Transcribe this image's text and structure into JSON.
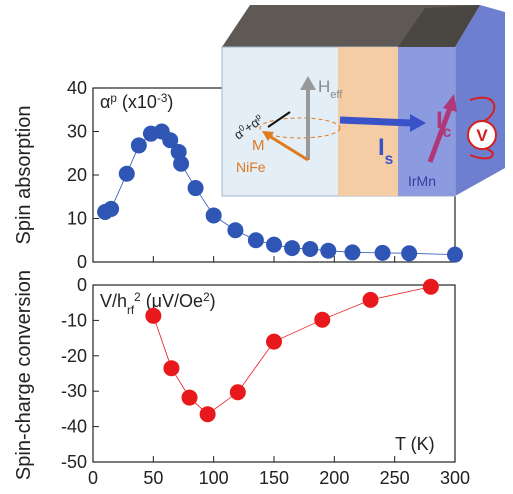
{
  "chart_data": [
    {
      "type": "scatter",
      "ylabel": "Spin absorption",
      "annotation": [
        {
          "text": "α"
        },
        {
          "text": "p",
          "style": "sup"
        },
        {
          "text": " (x10"
        },
        {
          "text": "-3",
          "style": "sup"
        },
        {
          "text": ")"
        }
      ],
      "x": [
        10,
        15,
        28,
        38,
        48,
        57,
        64,
        71,
        73,
        85,
        100,
        118,
        135,
        150,
        165,
        180,
        195,
        215,
        240,
        262,
        300
      ],
      "series": [
        {
          "color": "#2f55b5",
          "values": [
            11.5,
            12.2,
            20.3,
            26.8,
            29.5,
            30,
            28,
            25.3,
            22.6,
            17,
            10.7,
            7.3,
            5,
            4,
            3.2,
            3,
            2.6,
            2.2,
            2.1,
            2,
            1.7
          ]
        }
      ],
      "xlim": [
        0,
        300
      ],
      "xticks": [
        0,
        50,
        100,
        150,
        200,
        250,
        300
      ],
      "ylim": [
        0,
        40
      ],
      "yticks": [
        0,
        10,
        20,
        30,
        40
      ]
    },
    {
      "type": "scatter",
      "ylabel": "Spin-charge conversion",
      "xlabel": "T (K)",
      "annotation": [
        {
          "text": "V/h"
        },
        {
          "text": "rf",
          "style": "sub"
        },
        {
          "text": "2",
          "style": "sup"
        },
        {
          "text": " (μV/Oe"
        },
        {
          "text": "2",
          "style": "sup"
        },
        {
          "text": ")"
        }
      ],
      "x": [
        50,
        65,
        80,
        95,
        120,
        150,
        190,
        230,
        280
      ],
      "series": [
        {
          "color": "#e8191c",
          "values": [
            -8.7,
            -23.5,
            -31.8,
            -36.5,
            -30.3,
            -16,
            -9.8,
            -4.2,
            -0.5
          ]
        }
      ],
      "xlim": [
        0,
        300
      ],
      "xticks": [
        0,
        50,
        100,
        150,
        200,
        250,
        300
      ],
      "ylim": [
        -50,
        0
      ],
      "yticks": [
        0,
        -10,
        -20,
        -30,
        -40,
        -50
      ]
    }
  ],
  "inset": {
    "labels": [
      [
        {
          "text": "H"
        },
        {
          "text": "eff",
          "style": "sub"
        }
      ],
      [
        {
          "text": "α"
        },
        {
          "text": "0",
          "style": "sup"
        },
        {
          "text": "+α"
        },
        {
          "text": "p",
          "style": "sup"
        }
      ],
      [
        {
          "text": "M"
        }
      ],
      [
        {
          "text": "NiFe"
        }
      ],
      [
        {
          "text": "I"
        },
        {
          "text": "s",
          "style": "sub"
        }
      ],
      [
        {
          "text": "I"
        },
        {
          "text": "c",
          "style": "sub"
        }
      ],
      [
        {
          "text": "IrMn"
        }
      ],
      [
        {
          "text": "V"
        }
      ]
    ]
  }
}
